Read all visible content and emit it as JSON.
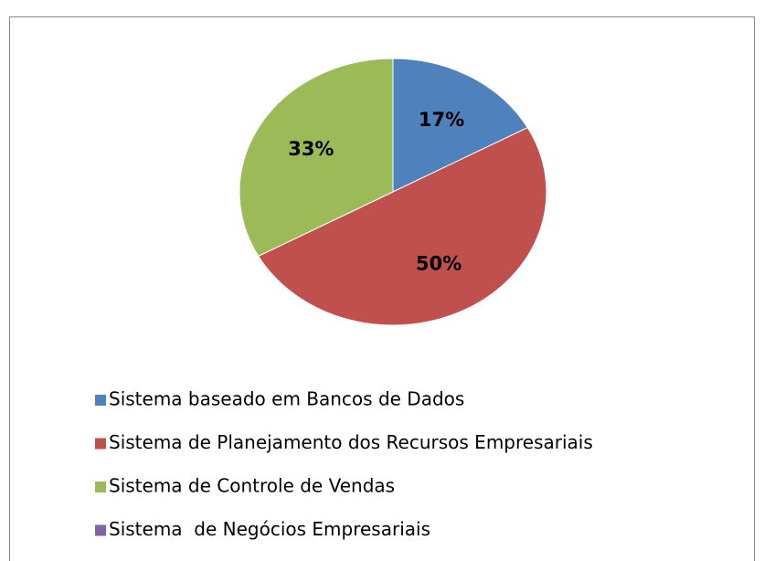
{
  "chart_data": {
    "type": "pie",
    "categories": [
      "Sistema baseado em Bancos de Dados",
      "Sistema de Planejamento dos Recursos Empresariais",
      "Sistema de Controle de Vendas",
      "Sistema  de Negócios Empresariais"
    ],
    "values": [
      17,
      50,
      33,
      0
    ],
    "value_labels": [
      "17%",
      "50%",
      "33%",
      null
    ],
    "colors": [
      "#4f81bd",
      "#c0504d",
      "#9bbb59",
      "#8064a2"
    ],
    "legend": "bottom"
  }
}
